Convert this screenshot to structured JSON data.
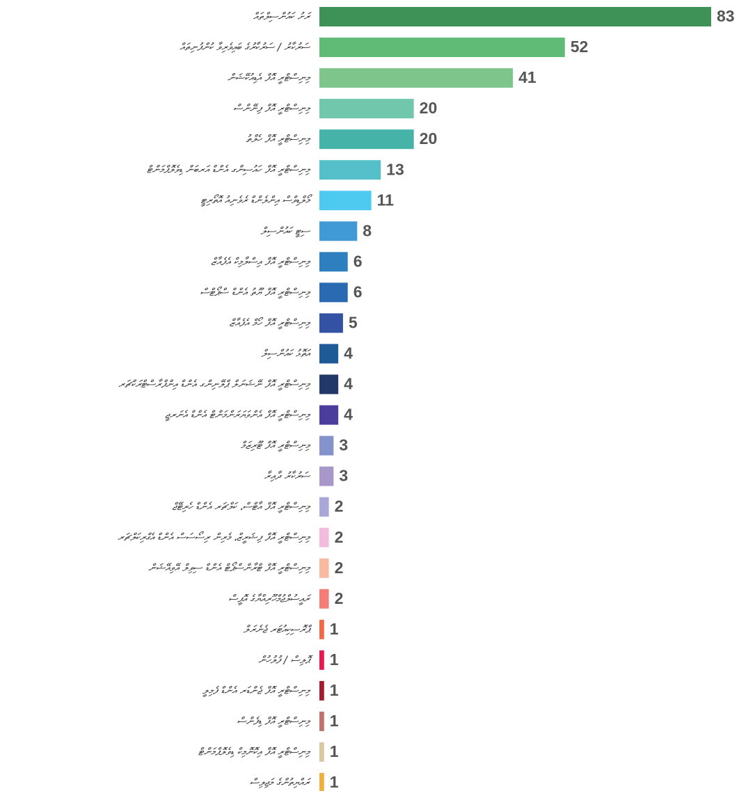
{
  "chart_data": {
    "type": "hbar",
    "categories": [
      "ރަށު ކައުންސިލްތައް",
      "ސަރުކާރު / ސަރުކާރުގެ ބައިވެރިވާ ކުންފުނިތައް",
      "މިނިސްޓްރީ އޮފް އެޑިއުކޭޝަން",
      "މިނިސްޓްރީ އޮފް ފިނޭންސް",
      "މިނިސްޓްރީ އޮފް ހެލްތު",
      "މިނިސްޓްރީ އޮފް ހައުސިންގ އެންޑް އަރބަން ޑިވެލޮޕްމަންޓް",
      "މޯލްޑިވްސް އިންލެންޑް ރެވެނިއު އޮތޯރިޓީ",
      "ސިޓީ ކައުންސިލް",
      "މިނިސްޓްރީ އޮފް އިސްލާމިކް އެފެއާޒް",
      "މިނިސްޓްރީ އޮފް ޔޫތު އެންޑް ސްޕޯޓްސް",
      "މިނިސްޓްރީ އޮފް ހޯމް އެފެއާޒް",
      "އަތޮޅު ކައުންސިލް",
      "މިނިސްޓްރީ އޮފް ނޭޝަނަލް ޕްލޭނިންގ އެންޑް އިންފްރާސްޓްރަކްޗަރ",
      "މިނިސްޓްރީ އޮފް އެންވަޔަރަންމަންޓް އެންޑް އެނަރޖީ",
      "މިނިސްޓްރީ އޮފް ޓޫރިޒަމް",
      "ސަރުކާރު ދާއިރާ",
      "މިނިސްޓްރީ އޮފް އާޓްސް، ކަލްޗަރ އެންޑް ހެރިޓޭޖް",
      "މިނިސްޓްރީ އޮފް ފިޝަރީޒް، މެރިން ރިސޯސަސް އެންޑް އެގްރިކަލްޗަރ",
      "މިނިސްޓްރީ އޮފް ޓްރާންސްޕޯޓް އެންޑް ސިވިލް އޭވިއޭޝަން",
      "ރައީސުލްޖުމްހޫރިއްޔާގެ އޮފީސް",
      "ޕްރޮސިކިއުޓަރ ޖެނެރަލް",
      "ޕޮލިސް / ފުލުހުން",
      "މިނިސްޓްރީ އޮފް ޖެންޑަރ އެންޑް ފެމިލީ",
      "މިނިސްޓްރީ އޮފް ޑިފެންސް",
      "މިނިސްޓްރީ އޮފް އިކޮނޮމިކް ޑިވެލޮޕްމަންޓް",
      "ރައްޔިތުންގެ މަޖިލިސް"
    ],
    "values": [
      83,
      52,
      41,
      20,
      20,
      13,
      11,
      8,
      6,
      6,
      5,
      4,
      4,
      4,
      3,
      3,
      2,
      2,
      2,
      2,
      1,
      1,
      1,
      1,
      1,
      1
    ],
    "colors": [
      "#3f9257",
      "#5fbb76",
      "#7dc58a",
      "#70c7ab",
      "#45b3a8",
      "#55c0c9",
      "#4ec9f0",
      "#3f9ad5",
      "#2e7fc0",
      "#2a6ab2",
      "#3452a3",
      "#1d5a96",
      "#213868",
      "#4b3d9b",
      "#8493cc",
      "#a898ca",
      "#a9a7d8",
      "#f4bcdc",
      "#f7b9a0",
      "#f47d78",
      "#f06a4a",
      "#e8194e",
      "#a51c30",
      "#c0736b",
      "#d9c8a0",
      "#f0b03c"
    ]
  }
}
